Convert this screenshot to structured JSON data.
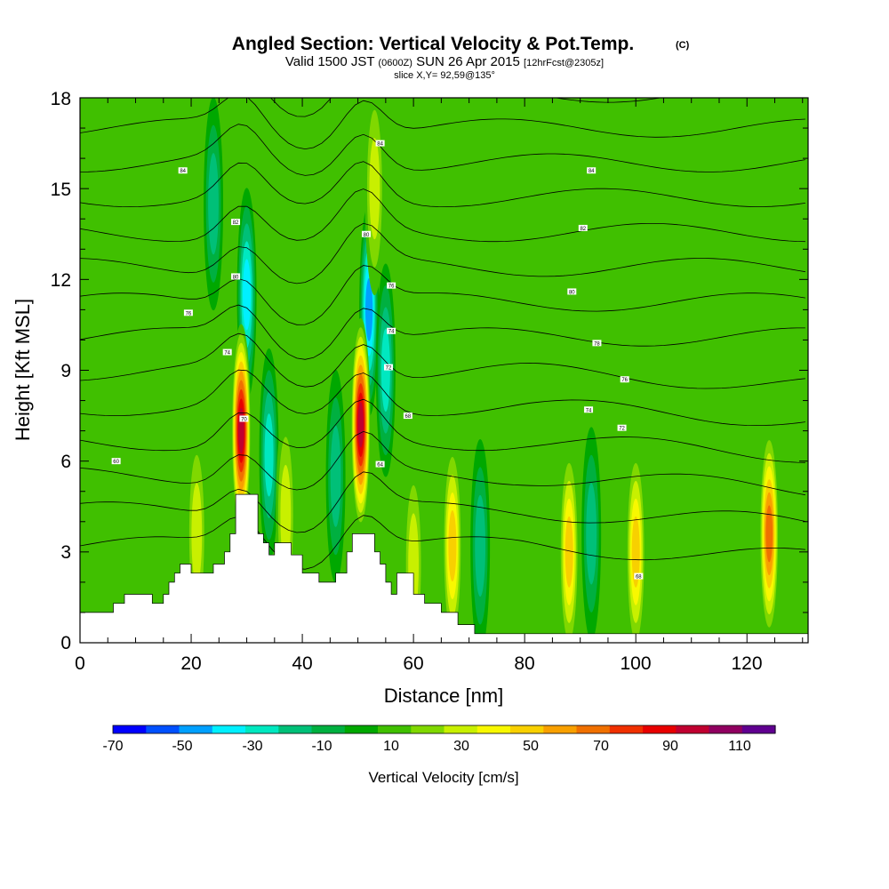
{
  "chart_data": {
    "type": "heatmap",
    "title": "Angled Section: Vertical Velocity & Pot.Temp.",
    "title_unit": "(C)",
    "subtitle_main": "Valid 1500 JST",
    "subtitle_z": "(0600Z)",
    "subtitle_date": "SUN 26 Apr 2015",
    "subtitle_fcst": "[12hrFcst@2305z]",
    "slice": "slice X,Y= 92,59@135°",
    "xlabel": "Distance [nm]",
    "ylabel": "Height [Kft MSL]",
    "xlim": [
      0,
      131
    ],
    "ylim": [
      0,
      18
    ],
    "x_ticks": [
      "0",
      "20",
      "40",
      "60",
      "80",
      "100",
      "120"
    ],
    "y_ticks": [
      "0",
      "3",
      "6",
      "9",
      "12",
      "15",
      "18"
    ],
    "background_value": 0,
    "updrafts": [
      {
        "x": 29,
        "z": 7.0,
        "value": 100
      },
      {
        "x": 50.5,
        "z": 7.2,
        "value": 100
      },
      {
        "x": 124,
        "z": 3.6,
        "value": 75
      },
      {
        "x": 67,
        "z": 3.2,
        "value": 55
      },
      {
        "x": 88,
        "z": 3.0,
        "value": 50
      },
      {
        "x": 100,
        "z": 3.0,
        "value": 50
      },
      {
        "x": 53,
        "z": 15.0,
        "value": 35
      },
      {
        "x": 37,
        "z": 4.2,
        "value": 35
      },
      {
        "x": 21,
        "z": 3.6,
        "value": 30
      },
      {
        "x": 60,
        "z": 2.6,
        "value": 30
      }
    ],
    "downdrafts": [
      {
        "x": 52,
        "z": 11.0,
        "value": -65
      },
      {
        "x": 30,
        "z": 11.5,
        "value": -55
      },
      {
        "x": 34,
        "z": 6.2,
        "value": -40
      },
      {
        "x": 46,
        "z": 5.5,
        "value": -30
      },
      {
        "x": 72,
        "z": 3.2,
        "value": -35
      },
      {
        "x": 92,
        "z": 3.6,
        "value": -30
      },
      {
        "x": 55,
        "z": 9.0,
        "value": -40
      },
      {
        "x": 24,
        "z": 14.5,
        "value": -30
      }
    ],
    "terrain": [
      [
        0,
        1.0
      ],
      [
        5,
        1.0
      ],
      [
        6,
        1.3
      ],
      [
        8,
        1.6
      ],
      [
        12,
        1.6
      ],
      [
        13,
        1.3
      ],
      [
        15,
        1.6
      ],
      [
        16,
        2.0
      ],
      [
        17,
        2.3
      ],
      [
        18,
        2.6
      ],
      [
        20,
        2.3
      ],
      [
        22,
        2.3
      ],
      [
        24,
        2.6
      ],
      [
        26,
        3.0
      ],
      [
        27,
        3.6
      ],
      [
        28,
        4.9
      ],
      [
        31,
        4.9
      ],
      [
        32,
        3.6
      ],
      [
        33,
        3.3
      ],
      [
        34,
        2.9
      ],
      [
        35,
        3.3
      ],
      [
        37,
        3.3
      ],
      [
        38,
        2.9
      ],
      [
        40,
        2.3
      ],
      [
        43,
        2.0
      ],
      [
        46,
        2.3
      ],
      [
        48,
        3.0
      ],
      [
        49,
        3.6
      ],
      [
        52,
        3.6
      ],
      [
        53,
        3.0
      ],
      [
        54,
        2.6
      ],
      [
        55,
        2.0
      ],
      [
        56,
        1.6
      ],
      [
        57,
        2.3
      ],
      [
        59,
        2.3
      ],
      [
        60,
        1.6
      ],
      [
        62,
        1.3
      ],
      [
        65,
        1.0
      ],
      [
        68,
        0.6
      ],
      [
        71,
        0.3
      ],
      [
        131,
        0.3
      ]
    ],
    "contour_labels": [
      {
        "x": 6.5,
        "z": 6.0,
        "text": "60"
      },
      {
        "x": 18.5,
        "z": 15.6,
        "text": "84"
      },
      {
        "x": 28,
        "z": 13.9,
        "text": "82"
      },
      {
        "x": 28,
        "z": 12.1,
        "text": "80"
      },
      {
        "x": 19.5,
        "z": 10.9,
        "text": "76"
      },
      {
        "x": 26.5,
        "z": 9.6,
        "text": "74"
      },
      {
        "x": 29.5,
        "z": 7.4,
        "text": "70"
      },
      {
        "x": 54,
        "z": 16.5,
        "text": "84"
      },
      {
        "x": 51.5,
        "z": 13.5,
        "text": "80"
      },
      {
        "x": 56,
        "z": 11.8,
        "text": "76"
      },
      {
        "x": 56,
        "z": 10.3,
        "text": "74"
      },
      {
        "x": 55.5,
        "z": 9.1,
        "text": "72"
      },
      {
        "x": 59,
        "z": 7.5,
        "text": "68"
      },
      {
        "x": 54,
        "z": 5.9,
        "text": "64"
      },
      {
        "x": 92,
        "z": 15.6,
        "text": "84"
      },
      {
        "x": 90.5,
        "z": 13.7,
        "text": "82"
      },
      {
        "x": 88.5,
        "z": 11.6,
        "text": "80"
      },
      {
        "x": 93,
        "z": 9.9,
        "text": "78"
      },
      {
        "x": 98,
        "z": 8.7,
        "text": "76"
      },
      {
        "x": 91.5,
        "z": 7.7,
        "text": "74"
      },
      {
        "x": 97.5,
        "z": 7.1,
        "text": "72"
      },
      {
        "x": 100.5,
        "z": 2.2,
        "text": "68"
      }
    ],
    "colorbar": {
      "label": "Vertical Velocity [cm/s]",
      "tick_labels": [
        "-70",
        "-50",
        "-30",
        "-10",
        "10",
        "30",
        "50",
        "70",
        "90",
        "110"
      ],
      "bins": [
        -80,
        -70,
        -60,
        -50,
        -40,
        -30,
        -20,
        -10,
        0,
        10,
        20,
        30,
        40,
        50,
        60,
        70,
        80,
        90,
        100,
        110,
        120
      ],
      "colors": [
        "#0000ff",
        "#0050ff",
        "#00a0ff",
        "#00f0ff",
        "#00e8c0",
        "#00c078",
        "#00b040",
        "#00a800",
        "#40c000",
        "#80d800",
        "#c8f000",
        "#f8f800",
        "#f8d000",
        "#f8a000",
        "#f07000",
        "#f03000",
        "#e80000",
        "#c00030",
        "#900060",
        "#600090"
      ]
    }
  }
}
